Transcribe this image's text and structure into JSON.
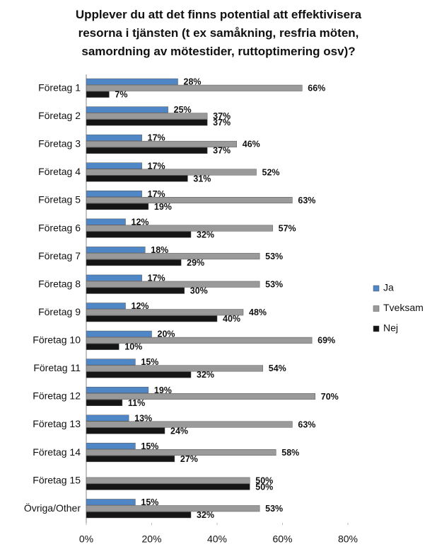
{
  "chart_data": {
    "type": "hbar",
    "title": "Upplever du att det finns potential att effektivisera resorna i tjänsten (t ex samåkning, resfria möten, samordning av mötestider, ruttoptimering osv)?",
    "categories": [
      "Företag 1",
      "Företag 2",
      "Företag 3",
      "Företag 4",
      "Företag 5",
      "Företag 6",
      "Företag 7",
      "Företag 8",
      "Företag 9",
      "Företag 10",
      "Företag 11",
      "Företag 12",
      "Företag 13",
      "Företag 14",
      "Företag 15",
      "Övriga/Other"
    ],
    "series": [
      {
        "name": "Ja",
        "color": "#4f86c6",
        "values": [
          28,
          25,
          17,
          17,
          17,
          12,
          18,
          17,
          12,
          20,
          15,
          19,
          13,
          15,
          null,
          15
        ],
        "value_labels": [
          "28%",
          "25%",
          "17%",
          "17%",
          "17%",
          "12%",
          "18%",
          "17%",
          "12%",
          "20%",
          "15%",
          "19%",
          "13%",
          "15%",
          null,
          "15%"
        ]
      },
      {
        "name": "Tveksam",
        "color": "#9a9a9a",
        "values": [
          66,
          37,
          46,
          52,
          63,
          57,
          53,
          53,
          48,
          69,
          54,
          70,
          63,
          58,
          50,
          53
        ],
        "value_labels": [
          "66%",
          "37%",
          "46%",
          "52%",
          "63%",
          "57%",
          "53%",
          "53%",
          "48%",
          "69%",
          "54%",
          "70%",
          "63%",
          "58%",
          "50%",
          "53%"
        ]
      },
      {
        "name": "Nej",
        "color": "#151515",
        "values": [
          7,
          37,
          37,
          31,
          19,
          32,
          29,
          30,
          40,
          10,
          32,
          11,
          24,
          27,
          50,
          32
        ],
        "value_labels": [
          "7%",
          "37%",
          "37%",
          "31%",
          "19%",
          "32%",
          "29%",
          "30%",
          "40%",
          "10%",
          "32%",
          "11%",
          "24%",
          "27%",
          "50%",
          "32%"
        ]
      }
    ],
    "xlim": [
      0,
      80
    ],
    "xticks": [
      {
        "value": 0,
        "label": "0%"
      },
      {
        "value": 20,
        "label": "20%"
      },
      {
        "value": 40,
        "label": "40%"
      },
      {
        "value": 60,
        "label": "60%"
      },
      {
        "value": 80,
        "label": "80%"
      }
    ],
    "legend": "right"
  }
}
